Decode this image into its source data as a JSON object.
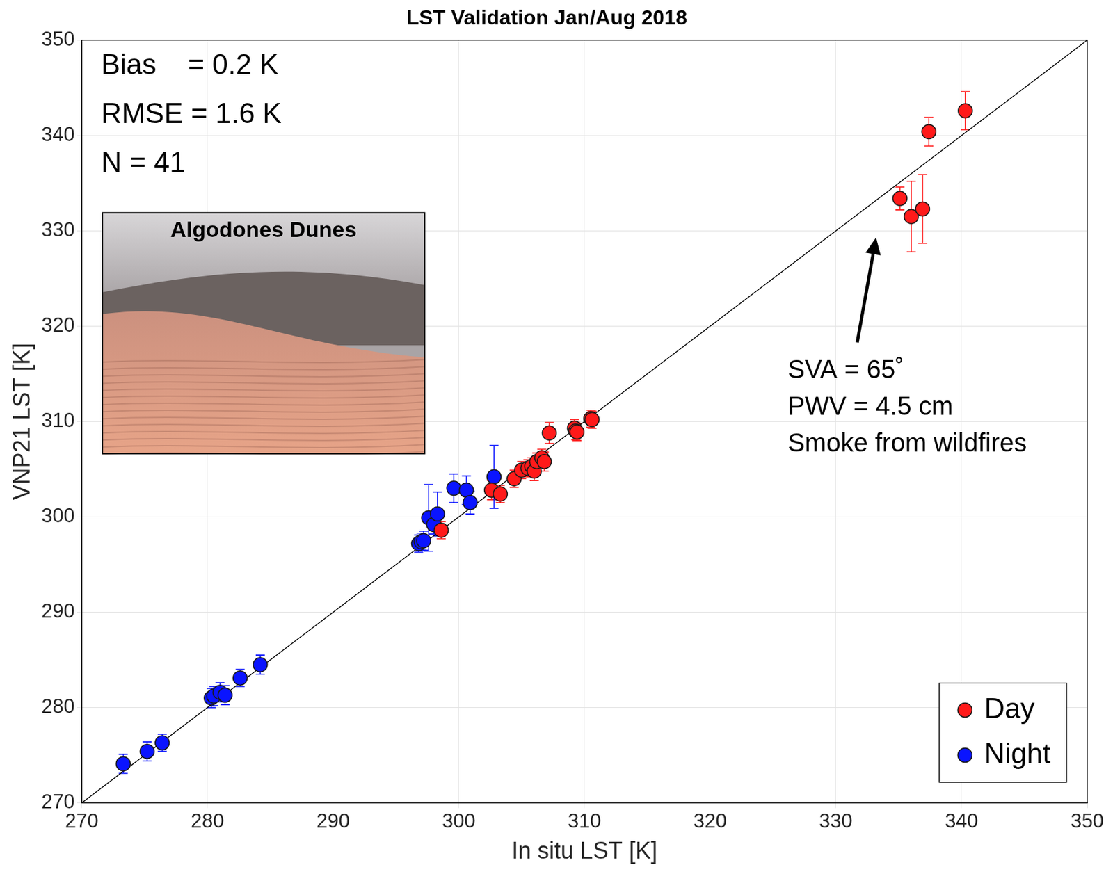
{
  "chart_data": {
    "type": "scatter",
    "title": "LST Validation Jan/Aug 2018",
    "x_label": "In situ LST [K]",
    "y_label": "VNP21 LST [K]",
    "xlim": [
      270,
      350
    ],
    "ylim": [
      270,
      350
    ],
    "xticks": [
      270,
      280,
      290,
      300,
      310,
      320,
      330,
      340,
      350
    ],
    "yticks": [
      270,
      280,
      290,
      300,
      310,
      320,
      330,
      340,
      350
    ],
    "grid": true,
    "legend": "lower right",
    "marker": "circle",
    "stats_text": [
      "Bias    = 0.2 K",
      "RMSE = 1.6 K",
      "N = 41"
    ],
    "inset_title": "Algodones Dunes",
    "one_to_one_line": {
      "x": [
        270,
        350
      ],
      "y": [
        270,
        350
      ]
    },
    "annotation": {
      "text": [
        "SVA = 65˚",
        "PWV = 4.5 cm",
        "Smoke from wildfires"
      ],
      "xy": [
        333.2,
        329.3
      ],
      "xytext": [
        331.7,
        318.3
      ]
    },
    "series": [
      {
        "name": "Day",
        "color": "#ff1a1a",
        "x": [
          298.6,
          302.6,
          303.3,
          304.4,
          305.0,
          305.5,
          305.8,
          306.0,
          306.2,
          306.6,
          306.8,
          307.2,
          309.2,
          309.3,
          309.4,
          310.5,
          310.6,
          335.1,
          336.0,
          336.9,
          337.4,
          340.3
        ],
        "values": [
          298.6,
          302.8,
          302.4,
          304.0,
          304.9,
          305.1,
          305.3,
          304.8,
          305.8,
          306.2,
          305.8,
          308.8,
          309.3,
          309.0,
          308.9,
          310.3,
          310.2,
          333.4,
          331.5,
          332.3,
          340.4,
          342.6
        ],
        "errors": [
          0.9,
          1.0,
          0.9,
          0.9,
          0.9,
          0.9,
          0.9,
          1.0,
          0.9,
          0.9,
          1.0,
          1.1,
          0.9,
          0.9,
          0.9,
          0.9,
          0.9,
          1.2,
          3.7,
          3.6,
          1.5,
          2.0
        ]
      },
      {
        "name": "Night",
        "color": "#0a14ff",
        "x": [
          273.3,
          275.2,
          276.4,
          280.3,
          280.5,
          281.0,
          281.4,
          282.6,
          284.2,
          296.8,
          297.0,
          297.2,
          297.6,
          298.0,
          298.3,
          299.6,
          300.6,
          300.9,
          302.8
        ],
        "values": [
          274.1,
          275.4,
          276.3,
          281.0,
          281.2,
          281.6,
          281.3,
          283.1,
          284.5,
          297.2,
          297.4,
          297.5,
          299.9,
          299.2,
          300.3,
          303.0,
          302.8,
          301.5,
          304.2
        ],
        "errors": [
          1.0,
          1.0,
          0.9,
          1.0,
          1.0,
          1.0,
          1.0,
          0.9,
          1.0,
          0.9,
          0.9,
          1.0,
          3.5,
          1.0,
          2.3,
          1.5,
          1.5,
          1.2,
          3.3
        ]
      }
    ]
  }
}
